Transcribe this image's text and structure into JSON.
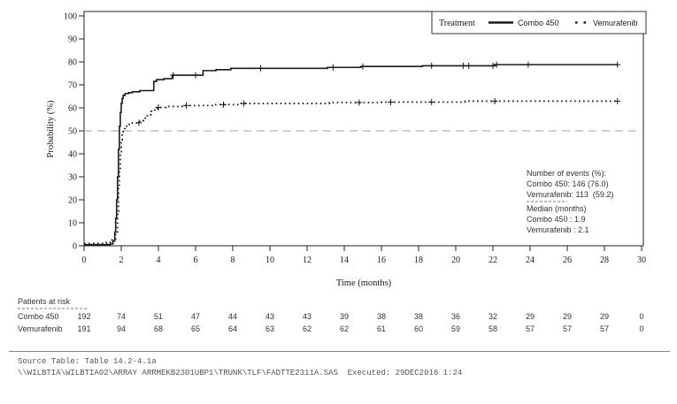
{
  "chart_data": {
    "type": "line",
    "subtype": "kaplan-meier-step",
    "title": "",
    "xlabel": "Time (months)",
    "ylabel": "Probability (%)",
    "xlim": [
      0,
      30
    ],
    "ylim": [
      0,
      100
    ],
    "x_ticks": [
      0,
      2,
      4,
      6,
      8,
      10,
      12,
      14,
      16,
      18,
      20,
      22,
      24,
      26,
      28,
      30
    ],
    "y_ticks": [
      0,
      10,
      20,
      30,
      40,
      50,
      60,
      70,
      80,
      90,
      100
    ],
    "grid": "off",
    "reference_line": {
      "y": 50,
      "style": "dashed",
      "color": "#b3b3b3"
    },
    "legend": {
      "position": "top-right",
      "title": "Treatment",
      "entries": [
        {
          "label": "Combo 450",
          "style": "solid",
          "color": "#1a1a1a"
        },
        {
          "label": "Vemurafenib",
          "style": "dotted",
          "color": "#1a1a1a"
        }
      ]
    },
    "series": [
      {
        "name": "Combo 450",
        "style": "solid",
        "step_points": [
          [
            0,
            0.5
          ],
          [
            1.4,
            0.8
          ],
          [
            1.55,
            2
          ],
          [
            1.65,
            6
          ],
          [
            1.7,
            12
          ],
          [
            1.75,
            20
          ],
          [
            1.8,
            30
          ],
          [
            1.85,
            42
          ],
          [
            1.9,
            52
          ],
          [
            1.95,
            58
          ],
          [
            2.0,
            62
          ],
          [
            2.05,
            64
          ],
          [
            2.1,
            65.4
          ],
          [
            2.2,
            66.2
          ],
          [
            2.4,
            66.6
          ],
          [
            2.6,
            67
          ],
          [
            3.0,
            67.5
          ],
          [
            3.75,
            71.5
          ],
          [
            3.9,
            72.3
          ],
          [
            4.3,
            72.7
          ],
          [
            4.75,
            74.2
          ],
          [
            6.4,
            76.2
          ],
          [
            7.1,
            76.6
          ],
          [
            7.9,
            77.2
          ],
          [
            13.1,
            77.6
          ],
          [
            14.9,
            78.0
          ],
          [
            18.2,
            78.3
          ],
          [
            22.1,
            78.8
          ],
          [
            28.7,
            78.8
          ]
        ],
        "censor_times": [
          4.8,
          6.0,
          9.5,
          13.4,
          15.0,
          18.7,
          20.4,
          20.7,
          22.0,
          22.2,
          23.9,
          28.7
        ],
        "events_label": "Combo 450: 146 (76.0)",
        "median_label": "Combo 450 : 1.9"
      },
      {
        "name": "Vemurafenib",
        "style": "dotted",
        "step_points": [
          [
            0,
            1
          ],
          [
            1.2,
            1.5
          ],
          [
            1.5,
            2.5
          ],
          [
            1.7,
            6
          ],
          [
            1.8,
            15
          ],
          [
            1.85,
            25
          ],
          [
            1.9,
            33
          ],
          [
            1.95,
            40
          ],
          [
            2.0,
            46
          ],
          [
            2.05,
            49.5
          ],
          [
            2.1,
            51
          ],
          [
            2.2,
            52
          ],
          [
            2.4,
            52.8
          ],
          [
            2.6,
            53.5
          ],
          [
            3.0,
            54.5
          ],
          [
            3.2,
            55.5
          ],
          [
            3.4,
            57
          ],
          [
            3.6,
            58.5
          ],
          [
            3.8,
            59.5
          ],
          [
            3.95,
            60.2
          ],
          [
            4.4,
            60.6
          ],
          [
            5.4,
            61.0
          ],
          [
            7.0,
            61.4
          ],
          [
            8.4,
            61.9
          ],
          [
            13.2,
            62.3
          ],
          [
            16.0,
            62.5
          ],
          [
            20.5,
            62.9
          ],
          [
            28.7,
            62.9
          ]
        ],
        "censor_times": [
          2.95,
          4.0,
          5.5,
          7.5,
          8.6,
          14.8,
          16.5,
          18.7,
          22.1,
          28.7
        ],
        "events_label": "Vemurafenib: 113  (59.2)",
        "median_label": "Vemurafenib : 2.1"
      }
    ]
  },
  "annotation": {
    "events_header": "Number of events (%):",
    "events_combo": "Combo 450: 146 (76.0)",
    "events_vemu": "Vemurafenib: 113  (59.2)",
    "median_header": "Median (months)",
    "median_combo": "Combo 450 : 1.9",
    "median_vemu": "Vemurafenib : 2.1"
  },
  "risk_table": {
    "title": "Patients at risk",
    "time_points": [
      0,
      2,
      4,
      6,
      8,
      10,
      12,
      14,
      16,
      18,
      20,
      22,
      24,
      26,
      28,
      30
    ],
    "rows": [
      {
        "label": "Combo 450",
        "values": [
          192,
          74,
          51,
          47,
          44,
          43,
          43,
          39,
          38,
          38,
          36,
          32,
          29,
          29,
          29,
          0
        ]
      },
      {
        "label": "Vemurafenib",
        "values": [
          191,
          94,
          68,
          65,
          64,
          63,
          62,
          62,
          61,
          60,
          59,
          58,
          57,
          57,
          57,
          0
        ]
      }
    ]
  },
  "footer": {
    "source_line": "Source Table: Table 14.2-4.1a",
    "path_line": "\\\\WILBTIA\\WILBTIA02\\ARRAY ARRMEKB2301UBP1\\TRUNK\\TLF\\FADTTE2311A.SAS  Executed: 29DEC2016 1:24"
  }
}
